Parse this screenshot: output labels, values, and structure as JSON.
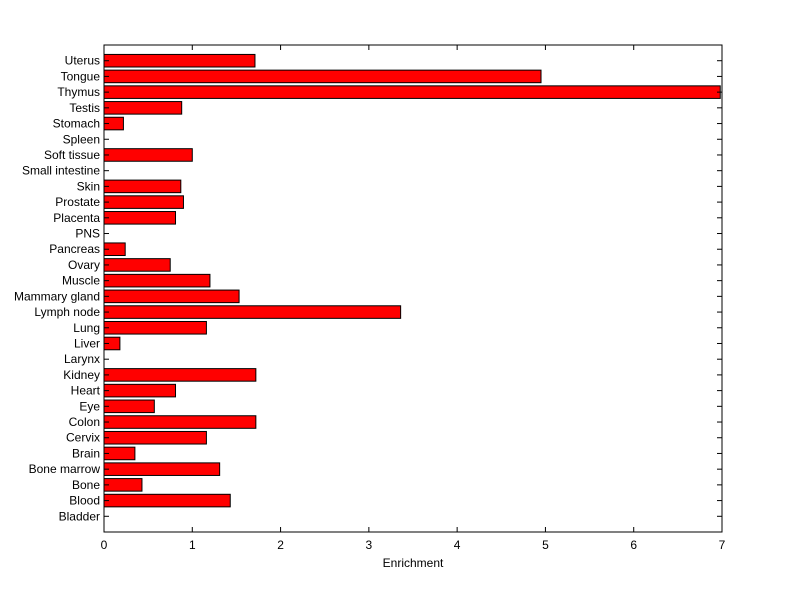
{
  "chart_data": {
    "type": "bar",
    "orientation": "horizontal",
    "title": "",
    "xlabel": "Enrichment",
    "ylabel": "",
    "xlim": [
      0,
      7
    ],
    "xticks": [
      "0",
      "1",
      "2",
      "3",
      "4",
      "5",
      "6",
      "7"
    ],
    "grid": false,
    "categories": [
      "Bladder",
      "Blood",
      "Bone",
      "Bone marrow",
      "Brain",
      "Cervix",
      "Colon",
      "Eye",
      "Heart",
      "Kidney",
      "Larynx",
      "Liver",
      "Lung",
      "Lymph node",
      "Mammary gland",
      "Muscle",
      "Ovary",
      "Pancreas",
      "PNS",
      "Placenta",
      "Prostate",
      "Skin",
      "Small intestine",
      "Soft tissue",
      "Spleen",
      "Stomach",
      "Testis",
      "Thymus",
      "Tongue",
      "Uterus"
    ],
    "values": [
      0,
      1.43,
      0.43,
      1.31,
      0.35,
      1.16,
      1.72,
      0.57,
      0.81,
      1.72,
      0,
      0.18,
      1.16,
      3.36,
      1.53,
      1.2,
      0.75,
      0.24,
      0,
      0.81,
      0.9,
      0.87,
      0,
      1.0,
      0,
      0.22,
      0.88,
      6.98,
      4.95,
      1.71
    ],
    "colors": {
      "bar_fill": "#ff0000",
      "bar_edge": "#000000",
      "axis": "#000000"
    }
  }
}
